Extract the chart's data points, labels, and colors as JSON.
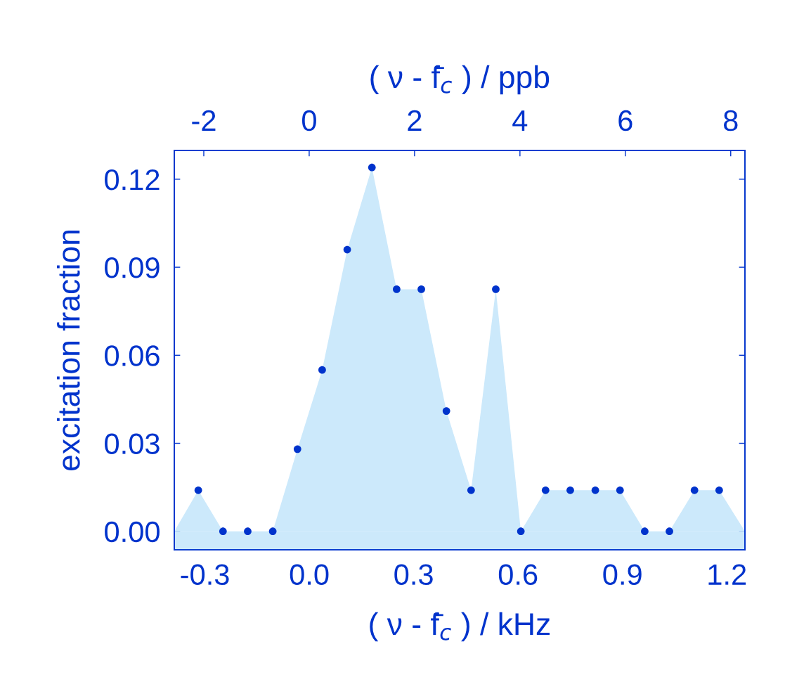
{
  "chart_data": {
    "type": "scatter",
    "xlabel": "( ν - f̄$_{c}$ ) / kHz",
    "ylabel": "excitation fraction",
    "x2label": "( ν - f̄$_{c}$ ) / ppb",
    "xlim": [
      -0.388,
      1.252
    ],
    "xticks": [
      {
        "value": -0.3,
        "label": "-0.3"
      },
      {
        "value": 0.0,
        "label": "0.0"
      },
      {
        "value": 0.3,
        "label": "0.3"
      },
      {
        "value": 0.6,
        "label": "0.6"
      },
      {
        "value": 0.9,
        "label": "0.9"
      },
      {
        "value": 1.2,
        "label": "1.2"
      }
    ],
    "x2lim": [
      -2.56,
      8.27
    ],
    "x2ticks": [
      -2,
      0,
      2,
      4,
      6,
      8
    ],
    "ylim": [
      -0.0063,
      0.1298
    ],
    "yticks": [
      {
        "value": 0.0,
        "label": "0.00"
      },
      {
        "value": 0.03,
        "label": "0.03"
      },
      {
        "value": 0.06,
        "label": "0.06"
      },
      {
        "value": 0.09,
        "label": "0.09"
      },
      {
        "value": 0.12,
        "label": "0.12"
      }
    ],
    "grid": false,
    "bands": [
      {
        "axis": "y",
        "from": -0.0063,
        "to": 0,
        "color": "#cce9fb"
      }
    ],
    "series": [
      {
        "type": "area",
        "marker": "none",
        "color": "#cce9fb",
        "x": [
          -0.388,
          -0.319,
          -0.248,
          -0.177,
          -0.105,
          -0.034,
          0.037,
          0.109,
          0.18,
          0.251,
          0.322,
          0.394,
          0.465,
          0.536,
          0.608,
          0.679,
          0.75,
          0.822,
          0.893,
          0.964,
          1.035,
          1.107,
          1.178,
          1.252
        ],
        "values": [
          0,
          0.014,
          0,
          0,
          0,
          0.028,
          0.055,
          0.096,
          0.124,
          0.0825,
          0.0825,
          0.041,
          0.014,
          0.0825,
          0,
          0.014,
          0.014,
          0.014,
          0.014,
          0,
          0,
          0.014,
          0.014,
          0
        ]
      },
      {
        "marker": "circle",
        "color": "#0033cc",
        "x": [
          -0.319,
          -0.248,
          -0.177,
          -0.105,
          -0.034,
          0.037,
          0.109,
          0.18,
          0.251,
          0.322,
          0.394,
          0.465,
          0.536,
          0.608,
          0.679,
          0.75,
          0.822,
          0.893,
          0.964,
          1.035,
          1.107,
          1.178
        ],
        "values": [
          0.014,
          0,
          0,
          0,
          0.028,
          0.055,
          0.096,
          0.124,
          0.0825,
          0.0825,
          0.041,
          0.014,
          0.0825,
          0,
          0.014,
          0.014,
          0.014,
          0.014,
          0,
          0,
          0.014,
          0.014
        ]
      }
    ]
  }
}
